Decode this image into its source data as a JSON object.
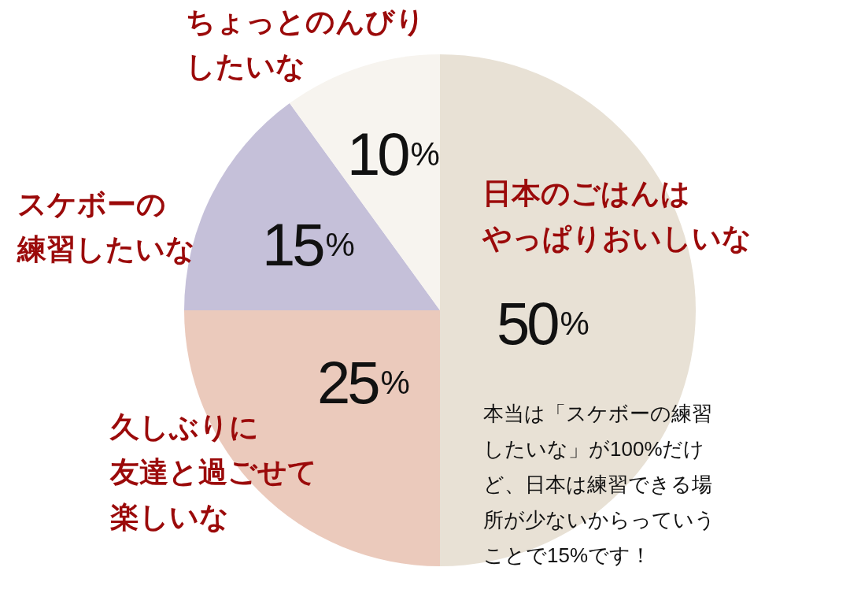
{
  "chart_data": {
    "type": "pie",
    "categories": [
      "日本のごはんはやっぱりおいしいな",
      "久しぶりに友達と過ごせて楽しいな",
      "スケボーの練習したいな",
      "ちょっとのんびりしたいな"
    ],
    "values": [
      50,
      25,
      15,
      10
    ],
    "colors": [
      "#e8e1d5",
      "#ebcabc",
      "#c5c0d9",
      "#f7f4ef"
    ],
    "value_labels": [
      "50%",
      "25%",
      "15%",
      "10%"
    ],
    "annotations": [
      "本当は「スケボーの練習したいな」が100%だけど、日本は練習できる場所が少ないからっていうことで15%です！"
    ]
  }
}
